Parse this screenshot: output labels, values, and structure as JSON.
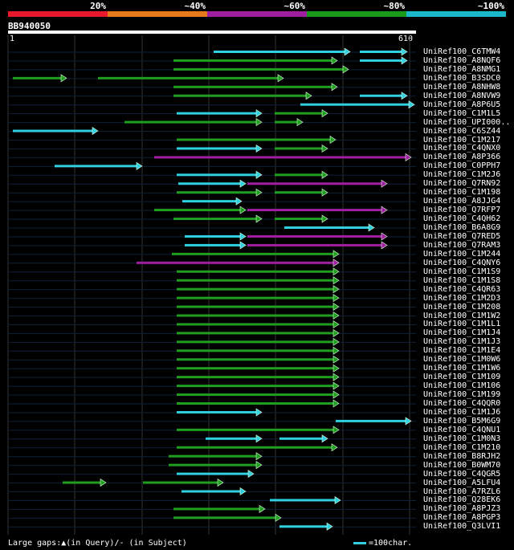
{
  "legend": {
    "segments": [
      {
        "label": "20%",
        "color": "#e8192c"
      },
      {
        "label": "~40%",
        "color": "#e8781c"
      },
      {
        "label": "~60%",
        "color": "#a01ea0"
      },
      {
        "label": "~80%",
        "color": "#1a9a1a"
      },
      {
        "label": "~100%",
        "color": "#1ab8c8"
      }
    ]
  },
  "query": {
    "id": "BB940050",
    "start": "1",
    "end": "610"
  },
  "hits": [
    {
      "name": "UniRef100_C6TMW4",
      "segs": [
        {
          "a": 266,
          "b": 436,
          "c": "cyan"
        },
        {
          "a": 448,
          "b": 507,
          "c": "cyan"
        }
      ]
    },
    {
      "name": "UniRef100_A8NQF6",
      "segs": [
        {
          "a": 216,
          "b": 420,
          "c": "green"
        },
        {
          "a": 448,
          "b": 507,
          "c": "cyan"
        }
      ]
    },
    {
      "name": "UniRef100_A8NMG1",
      "segs": [
        {
          "a": 216,
          "b": 434,
          "c": "green"
        }
      ]
    },
    {
      "name": "UniRef100_B3SDC0",
      "segs": [
        {
          "a": 16,
          "b": 83,
          "c": "green"
        },
        {
          "a": 122,
          "b": 353,
          "c": "green"
        }
      ]
    },
    {
      "name": "UniRef100_A8NHW8",
      "segs": [
        {
          "a": 216,
          "b": 420,
          "c": "green"
        }
      ]
    },
    {
      "name": "UniRef100_A8NVW9",
      "segs": [
        {
          "a": 216,
          "b": 388,
          "c": "green"
        },
        {
          "a": 448,
          "b": 507,
          "c": "cyan"
        }
      ]
    },
    {
      "name": "UniRef100_A8P6U5",
      "segs": [
        {
          "a": 374,
          "b": 516,
          "c": "cyan"
        }
      ]
    },
    {
      "name": "UniRef100_C1M1L5",
      "segs": [
        {
          "a": 220,
          "b": 326,
          "c": "cyan"
        },
        {
          "a": 342,
          "b": 408,
          "c": "green"
        }
      ]
    },
    {
      "name": "UniRef100_UPI000..",
      "segs": [
        {
          "a": 155,
          "b": 326,
          "c": "green"
        },
        {
          "a": 342,
          "b": 377,
          "c": "green"
        }
      ]
    },
    {
      "name": "UniRef100_C6SZ44",
      "segs": [
        {
          "a": 16,
          "b": 122,
          "c": "cyan"
        }
      ]
    },
    {
      "name": "UniRef100_C1M217",
      "segs": [
        {
          "a": 220,
          "b": 418,
          "c": "green"
        }
      ]
    },
    {
      "name": "UniRef100_C4QNX0",
      "segs": [
        {
          "a": 220,
          "b": 326,
          "c": "cyan"
        },
        {
          "a": 342,
          "b": 408,
          "c": "green"
        }
      ]
    },
    {
      "name": "UniRef100_A8P366",
      "segs": [
        {
          "a": 192,
          "b": 512,
          "c": "magenta"
        }
      ]
    },
    {
      "name": "UniRef100_C0PPH7",
      "segs": [
        {
          "a": 68,
          "b": 177,
          "c": "cyan"
        }
      ]
    },
    {
      "name": "UniRef100_C1M2J6",
      "segs": [
        {
          "a": 220,
          "b": 326,
          "c": "cyan"
        },
        {
          "a": 342,
          "b": 408,
          "c": "green"
        }
      ]
    },
    {
      "name": "UniRef100_Q7RN92",
      "segs": [
        {
          "a": 222,
          "b": 306,
          "c": "cyan"
        },
        {
          "a": 308,
          "b": 482,
          "c": "magenta"
        }
      ]
    },
    {
      "name": "UniRef100_C1M198",
      "segs": [
        {
          "a": 220,
          "b": 326,
          "c": "green"
        },
        {
          "a": 342,
          "b": 408,
          "c": "green"
        }
      ]
    },
    {
      "name": "UniRef100_A8JJG4",
      "segs": [
        {
          "a": 227,
          "b": 301,
          "c": "cyan"
        }
      ]
    },
    {
      "name": "UniRef100_Q7RFP7",
      "segs": [
        {
          "a": 192,
          "b": 306,
          "c": "green"
        },
        {
          "a": 308,
          "b": 482,
          "c": "magenta"
        }
      ]
    },
    {
      "name": "UniRef100_C4QH62",
      "segs": [
        {
          "a": 216,
          "b": 326,
          "c": "green"
        },
        {
          "a": 342,
          "b": 408,
          "c": "green"
        }
      ]
    },
    {
      "name": "UniRef100_B6A8G9",
      "segs": [
        {
          "a": 354,
          "b": 466,
          "c": "cyan"
        }
      ]
    },
    {
      "name": "UniRef100_Q7RED5",
      "segs": [
        {
          "a": 230,
          "b": 306,
          "c": "cyan"
        },
        {
          "a": 308,
          "b": 482,
          "c": "magenta"
        }
      ]
    },
    {
      "name": "UniRef100_Q7RAM3",
      "segs": [
        {
          "a": 230,
          "b": 306,
          "c": "cyan"
        },
        {
          "a": 308,
          "b": 482,
          "c": "magenta"
        }
      ]
    },
    {
      "name": "UniRef100_C1M244",
      "segs": [
        {
          "a": 214,
          "b": 422,
          "c": "green"
        }
      ]
    },
    {
      "name": "UniRef100_C4QNY6",
      "segs": [
        {
          "a": 170,
          "b": 422,
          "c": "magenta"
        }
      ]
    },
    {
      "name": "UniRef100_C1M1S9",
      "segs": [
        {
          "a": 220,
          "b": 422,
          "c": "green"
        }
      ]
    },
    {
      "name": "UniRef100_C1M1S8",
      "segs": [
        {
          "a": 220,
          "b": 422,
          "c": "green"
        }
      ]
    },
    {
      "name": "UniRef100_C4QR63",
      "segs": [
        {
          "a": 220,
          "b": 422,
          "c": "green"
        }
      ]
    },
    {
      "name": "UniRef100_C1M2D3",
      "segs": [
        {
          "a": 220,
          "b": 422,
          "c": "green"
        }
      ]
    },
    {
      "name": "UniRef100_C1M208",
      "segs": [
        {
          "a": 220,
          "b": 422,
          "c": "green"
        }
      ]
    },
    {
      "name": "UniRef100_C1M1W2",
      "segs": [
        {
          "a": 220,
          "b": 422,
          "c": "green"
        }
      ]
    },
    {
      "name": "UniRef100_C1M1L1",
      "segs": [
        {
          "a": 220,
          "b": 422,
          "c": "green"
        }
      ]
    },
    {
      "name": "UniRef100_C1M1J4",
      "segs": [
        {
          "a": 220,
          "b": 422,
          "c": "green"
        }
      ]
    },
    {
      "name": "UniRef100_C1M1J3",
      "segs": [
        {
          "a": 220,
          "b": 422,
          "c": "green"
        }
      ]
    },
    {
      "name": "UniRef100_C1M1E4",
      "segs": [
        {
          "a": 220,
          "b": 422,
          "c": "green"
        }
      ]
    },
    {
      "name": "UniRef100_C1M0W6",
      "segs": [
        {
          "a": 220,
          "b": 422,
          "c": "green"
        }
      ]
    },
    {
      "name": "UniRef100_C1M1W6",
      "segs": [
        {
          "a": 220,
          "b": 422,
          "c": "green"
        }
      ]
    },
    {
      "name": "UniRef100_C1M109",
      "segs": [
        {
          "a": 220,
          "b": 422,
          "c": "green"
        }
      ]
    },
    {
      "name": "UniRef100_C1M106",
      "segs": [
        {
          "a": 220,
          "b": 422,
          "c": "green"
        }
      ]
    },
    {
      "name": "UniRef100_C1M199",
      "segs": [
        {
          "a": 220,
          "b": 422,
          "c": "green"
        }
      ]
    },
    {
      "name": "UniRef100_C4QQR0",
      "segs": [
        {
          "a": 220,
          "b": 422,
          "c": "green"
        }
      ]
    },
    {
      "name": "UniRef100_C1M1J6",
      "segs": [
        {
          "a": 220,
          "b": 326,
          "c": "cyan"
        }
      ]
    },
    {
      "name": "UniRef100_B5M6G9",
      "segs": [
        {
          "a": 418,
          "b": 512,
          "c": "cyan"
        }
      ]
    },
    {
      "name": "UniRef100_C4QNU1",
      "segs": [
        {
          "a": 220,
          "b": 422,
          "c": "green"
        }
      ]
    },
    {
      "name": "UniRef100_C1M0N3",
      "segs": [
        {
          "a": 256,
          "b": 326,
          "c": "cyan"
        },
        {
          "a": 348,
          "b": 408,
          "c": "cyan"
        }
      ]
    },
    {
      "name": "UniRef100_C1M210",
      "segs": [
        {
          "a": 220,
          "b": 420,
          "c": "green"
        }
      ]
    },
    {
      "name": "UniRef100_B8RJH2",
      "segs": [
        {
          "a": 210,
          "b": 326,
          "c": "green"
        }
      ]
    },
    {
      "name": "UniRef100_B0WM70",
      "segs": [
        {
          "a": 210,
          "b": 326,
          "c": "green"
        }
      ]
    },
    {
      "name": "UniRef100_C4QGR5",
      "segs": [
        {
          "a": 220,
          "b": 316,
          "c": "cyan"
        }
      ]
    },
    {
      "name": "UniRef100_A5LFU4",
      "segs": [
        {
          "a": 78,
          "b": 132,
          "c": "green"
        },
        {
          "a": 178,
          "b": 278,
          "c": "green"
        }
      ]
    },
    {
      "name": "UniRef100_A7RZL6",
      "segs": [
        {
          "a": 226,
          "b": 306,
          "c": "cyan"
        }
      ]
    },
    {
      "name": "UniRef100_Q28EK6",
      "segs": [
        {
          "a": 336,
          "b": 424,
          "c": "cyan"
        }
      ]
    },
    {
      "name": "UniRef100_A8PJZ3",
      "segs": [
        {
          "a": 216,
          "b": 330,
          "c": "green"
        }
      ]
    },
    {
      "name": "UniRef100_A8PGP3",
      "segs": [
        {
          "a": 216,
          "b": 350,
          "c": "green"
        }
      ]
    },
    {
      "name": "UniRef100_Q3LVI1",
      "segs": [
        {
          "a": 348,
          "b": 414,
          "c": "cyan"
        }
      ]
    }
  ],
  "footer": {
    "gaps_label": "Large gaps:▲(in Query)/- (in Subject)",
    "scale_label": "=100char."
  },
  "colors": {
    "green": "#1f9e1f",
    "cyan": "#2fd0e0",
    "magenta": "#a01ea0",
    "grid": "#333",
    "row": "#0e1f3a"
  }
}
